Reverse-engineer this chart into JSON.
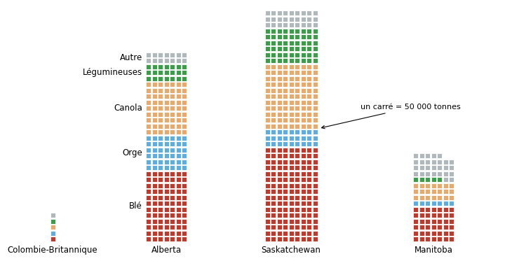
{
  "provinces": [
    "Colombie-Britannique",
    "Alberta",
    "Saskatchewan",
    "Manitoba"
  ],
  "unit_label": "un carré = 50 000 tonnes",
  "categories": [
    "Blé",
    "Orge",
    "Canola",
    "Légumineuses",
    "Autre"
  ],
  "colors": {
    "Blé": "#c0392b",
    "Orge": "#5dade2",
    "Canola": "#e8a96a",
    "Légumineuses": "#3a9e48",
    "Autre": "#b0b8bc"
  },
  "data": {
    "Colombie-Britannique": {
      "Blé": 1,
      "Orge": 1,
      "Canola": 1,
      "Légumineuses": 1,
      "Autre": 1
    },
    "Alberta": {
      "Blé": 84,
      "Orge": 42,
      "Canola": 63,
      "Légumineuses": 21,
      "Autre": 14
    },
    "Saskatchewan": {
      "Blé": 144,
      "Orge": 27,
      "Canola": 99,
      "Légumineuses": 54,
      "Autre": 27
    },
    "Manitoba": {
      "Blé": 42,
      "Orge": 7,
      "Canola": 21,
      "Légumineuses": 5,
      "Autre": 28
    }
  },
  "col_widths": {
    "Colombie-Britannique": 1,
    "Alberta": 7,
    "Saskatchewan": 9,
    "Manitoba": 7
  },
  "category_labels": {
    "Blé": "Blé",
    "Orge": "Orge",
    "Canola": "Canola",
    "Légumineuses": "Légumineuses",
    "Autre": "Autre"
  },
  "figsize": [
    7.2,
    3.73
  ],
  "dpi": 100,
  "bg_color": "#ffffff"
}
